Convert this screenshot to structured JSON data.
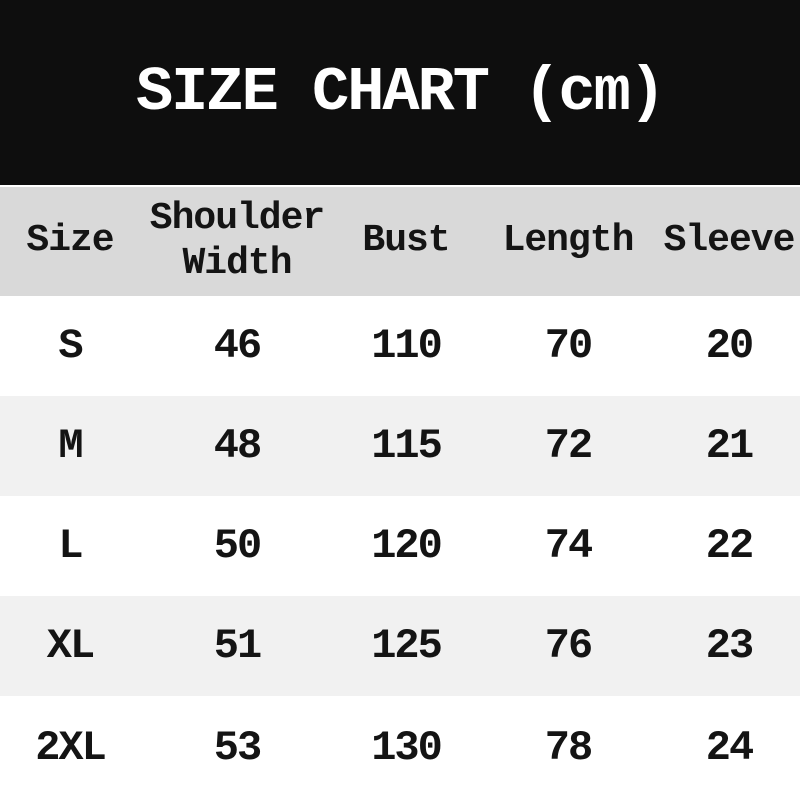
{
  "chart_data": {
    "type": "table",
    "title": "SIZE CHART (cm)",
    "unit": "cm",
    "columns": [
      "Size",
      "Shoulder Width",
      "Bust",
      "Length",
      "Sleeve"
    ],
    "rows": [
      [
        "S",
        "46",
        "110",
        "70",
        "20"
      ],
      [
        "M",
        "48",
        "115",
        "72",
        "21"
      ],
      [
        "L",
        "50",
        "120",
        "74",
        "22"
      ],
      [
        "XL",
        "51",
        "125",
        "76",
        "23"
      ],
      [
        "2XL",
        "53",
        "130",
        "78",
        "24"
      ]
    ]
  },
  "colors": {
    "banner_bg": "#0e0e0e",
    "title_text": "#ffffff",
    "header_row_bg": "#d9d9d9",
    "row_bg": "#ffffff",
    "row_alt_bg": "#f1f1f1",
    "table_text": "#141414"
  }
}
